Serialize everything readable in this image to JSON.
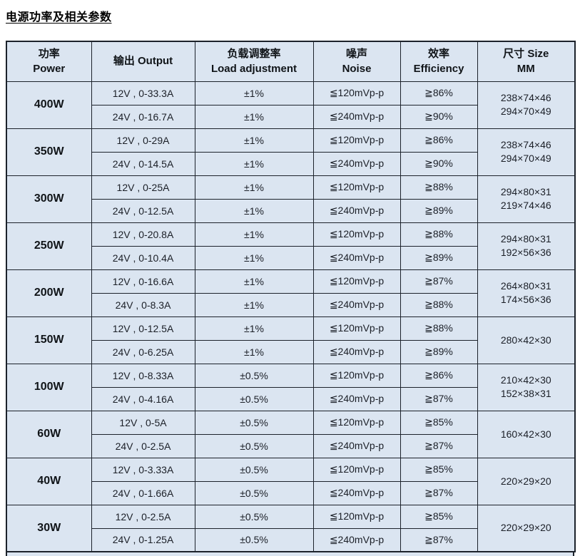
{
  "page": {
    "title": "电源功率及相关参数"
  },
  "colors": {
    "cell_background": "#dbe5f1",
    "grid_border": "#1c222b",
    "text": "#1b1f27"
  },
  "table": {
    "columns": [
      {
        "line1": "功率",
        "line2": "Power"
      },
      {
        "line1": "输出  Output"
      },
      {
        "line1": "负载调整率",
        "line2": "Load adjustment"
      },
      {
        "line1": "噪声",
        "line2": "Noise"
      },
      {
        "line1": "效率",
        "line2": "Efficiency"
      },
      {
        "line1": "尺寸 Size",
        "line2": "MM"
      }
    ],
    "groups": [
      {
        "power": "400W",
        "size": [
          "238×74×46",
          "294×70×49"
        ],
        "rows": [
          {
            "output": "12V , 0-33.3A",
            "load": "±1%",
            "noise": "≦120mVp-p",
            "eff": "≧86%"
          },
          {
            "output": "24V , 0-16.7A",
            "load": "±1%",
            "noise": "≦240mVp-p",
            "eff": "≧90%"
          }
        ]
      },
      {
        "power": "350W",
        "size": [
          "238×74×46",
          "294×70×49"
        ],
        "rows": [
          {
            "output": "12V , 0-29A",
            "load": "±1%",
            "noise": "≦120mVp-p",
            "eff": "≧86%"
          },
          {
            "output": "24V , 0-14.5A",
            "load": "±1%",
            "noise": "≦240mVp-p",
            "eff": "≧90%"
          }
        ]
      },
      {
        "power": "300W",
        "size": [
          "294×80×31",
          "219×74×46"
        ],
        "rows": [
          {
            "output": "12V , 0-25A",
            "load": "±1%",
            "noise": "≦120mVp-p",
            "eff": "≧88%"
          },
          {
            "output": "24V , 0-12.5A",
            "load": "±1%",
            "noise": "≦240mVp-p",
            "eff": "≧89%"
          }
        ]
      },
      {
        "power": "250W",
        "size": [
          "294×80×31",
          "192×56×36"
        ],
        "rows": [
          {
            "output": "12V , 0-20.8A",
            "load": "±1%",
            "noise": "≦120mVp-p",
            "eff": "≧88%"
          },
          {
            "output": "24V , 0-10.4A",
            "load": "±1%",
            "noise": "≦240mVp-p",
            "eff": "≧89%"
          }
        ]
      },
      {
        "power": "200W",
        "size": [
          "264×80×31",
          "174×56×36"
        ],
        "rows": [
          {
            "output": "12V , 0-16.6A",
            "load": "±1%",
            "noise": "≦120mVp-p",
            "eff": "≧87%"
          },
          {
            "output": "24V , 0-8.3A",
            "load": "±1%",
            "noise": "≦240mVp-p",
            "eff": "≧88%"
          }
        ]
      },
      {
        "power": "150W",
        "size": [
          "280×42×30"
        ],
        "rows": [
          {
            "output": "12V , 0-12.5A",
            "load": "±1%",
            "noise": "≦120mVp-p",
            "eff": "≧88%"
          },
          {
            "output": "24V , 0-6.25A",
            "load": "±1%",
            "noise": "≦240mVp-p",
            "eff": "≧89%"
          }
        ]
      },
      {
        "power": "100W",
        "size": [
          "210×42×30",
          "152×38×31"
        ],
        "rows": [
          {
            "output": "12V , 0-8.33A",
            "load": "±0.5%",
            "noise": "≦120mVp-p",
            "eff": "≧86%"
          },
          {
            "output": "24V , 0-4.16A",
            "load": "±0.5%",
            "noise": "≦240mVp-p",
            "eff": "≧87%"
          }
        ]
      },
      {
        "power": "60W",
        "size": [
          "160×42×30"
        ],
        "rows": [
          {
            "output": "12V , 0-5A",
            "load": "±0.5%",
            "noise": "≦120mVp-p",
            "eff": "≧85%"
          },
          {
            "output": "24V , 0-2.5A",
            "load": "±0.5%",
            "noise": "≦240mVp-p",
            "eff": "≧87%"
          }
        ]
      },
      {
        "power": "40W",
        "size": [
          "220×29×20"
        ],
        "rows": [
          {
            "output": "12V , 0-3.33A",
            "load": "±0.5%",
            "noise": "≦120mVp-p",
            "eff": "≧85%"
          },
          {
            "output": "24V , 0-1.66A",
            "load": "±0.5%",
            "noise": "≦240mVp-p",
            "eff": "≧87%"
          }
        ]
      },
      {
        "power": "30W",
        "size": [
          "220×29×20"
        ],
        "rows": [
          {
            "output": "12V , 0-2.5A",
            "load": "±0.5%",
            "noise": "≦120mVp-p",
            "eff": "≧85%"
          },
          {
            "output": "24V , 0-1.25A",
            "load": "±0.5%",
            "noise": "≦240mVp-p",
            "eff": "≧87%"
          }
        ]
      }
    ]
  }
}
